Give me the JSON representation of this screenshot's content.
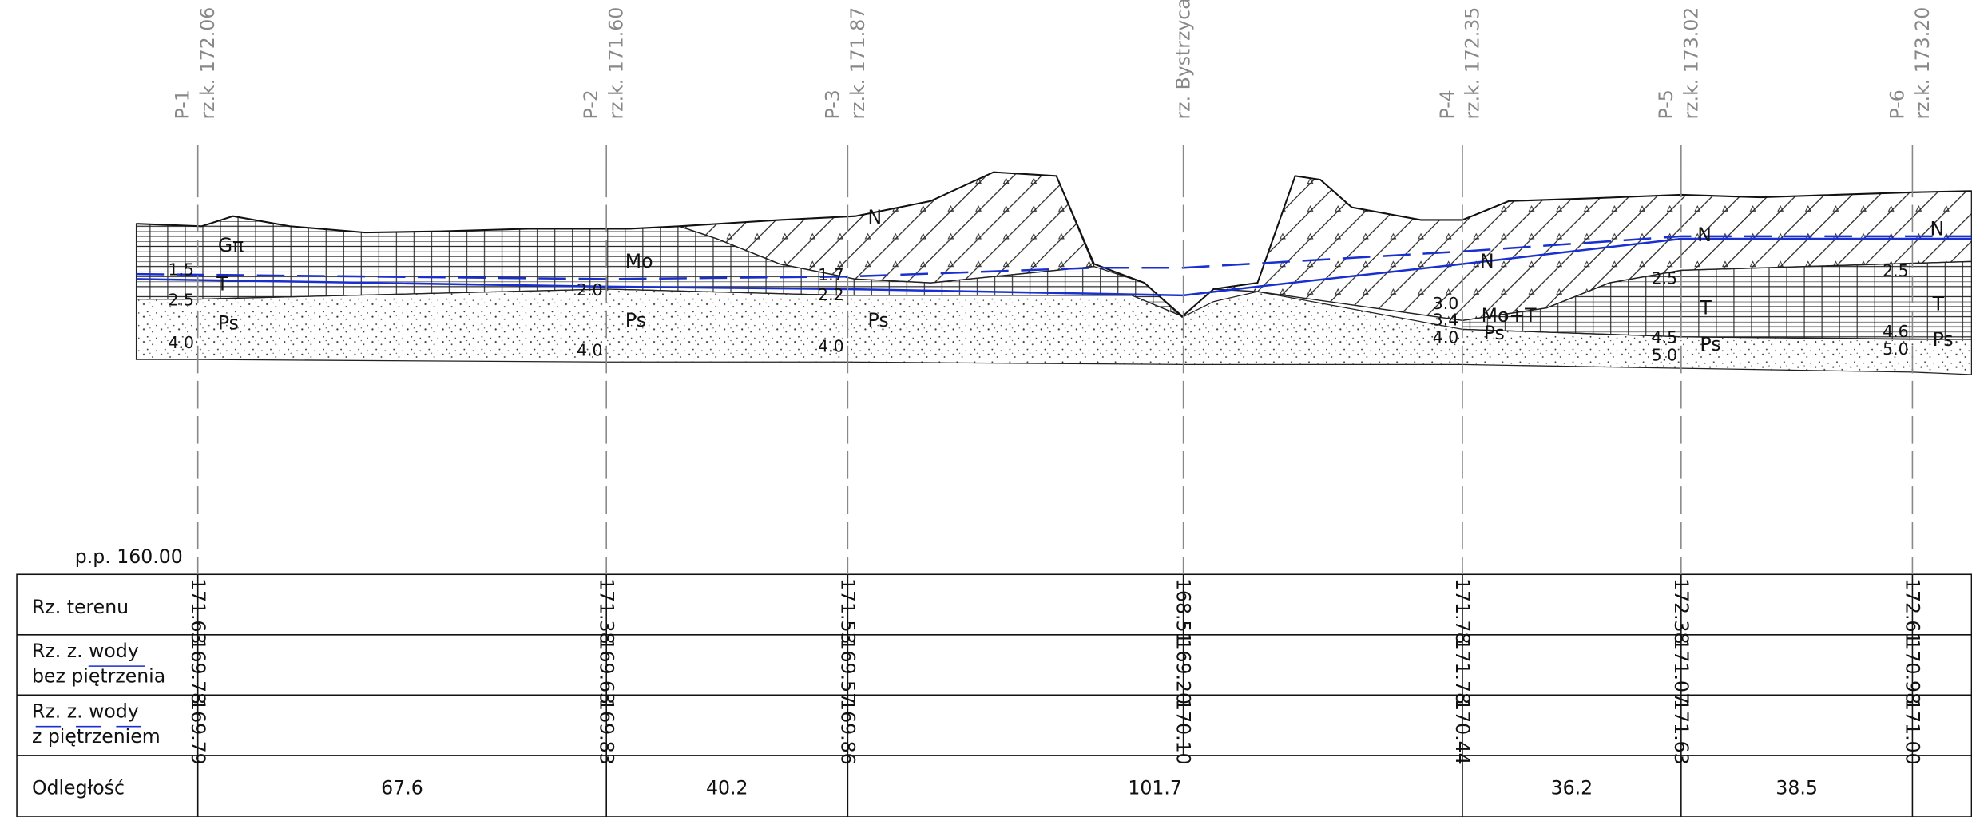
{
  "columns": [
    {
      "name": "P-1",
      "elevation": "rz.k. 172.06"
    },
    {
      "name": "P-2",
      "elevation": "rz.k. 171.60"
    },
    {
      "name": "P-3",
      "elevation": "rz.k. 171.87"
    },
    {
      "name": "rz. Bystrzyca"
    },
    {
      "name": "P-4",
      "elevation": "rz.k. 172.35"
    },
    {
      "name": "P-5",
      "elevation": "rz.k. 173.02"
    },
    {
      "name": "P-6",
      "elevation": "rz.k. 173.20"
    }
  ],
  "layer_labels": [
    "Gπ",
    "T",
    "Ps",
    "Mo",
    "Ps",
    "N",
    "Ps",
    "N",
    "Mo+T",
    "Ps",
    "N",
    "T",
    "Ps",
    "N",
    "T",
    "Ps"
  ],
  "depth_labels": [
    "1.5",
    "2.5",
    "4.0",
    "2.0",
    "4.0",
    "1.7",
    "2.2",
    "4.0",
    "3.0",
    "3.4",
    "4.0",
    "2.5",
    "4.5",
    "5.0",
    "2.5",
    "4.6",
    "5.0"
  ],
  "datum": "p.p. 160.00",
  "table": {
    "row_labels": [
      [
        "Rz. terenu"
      ],
      [
        "Rz. z. wody",
        "bez piętrzenia"
      ],
      [
        "Rz. z. wody",
        "z piętrzeniem"
      ],
      [
        "Odległość"
      ]
    ],
    "terrain": [
      "171.63",
      "171.38",
      "171.53",
      "168.51",
      "171.78",
      "172.38",
      "172.61"
    ],
    "water_no_damming": [
      "169.78",
      "169.63",
      "169.57",
      "169.20",
      "171.78",
      "171.07",
      "170.98"
    ],
    "water_damming": [
      "169.79",
      "169.83",
      "169.86",
      "170.10",
      "170.44",
      "171.63",
      "171.00"
    ],
    "distances": [
      "67.6",
      "40.2",
      "101.7",
      "36.2",
      "38.5"
    ]
  }
}
